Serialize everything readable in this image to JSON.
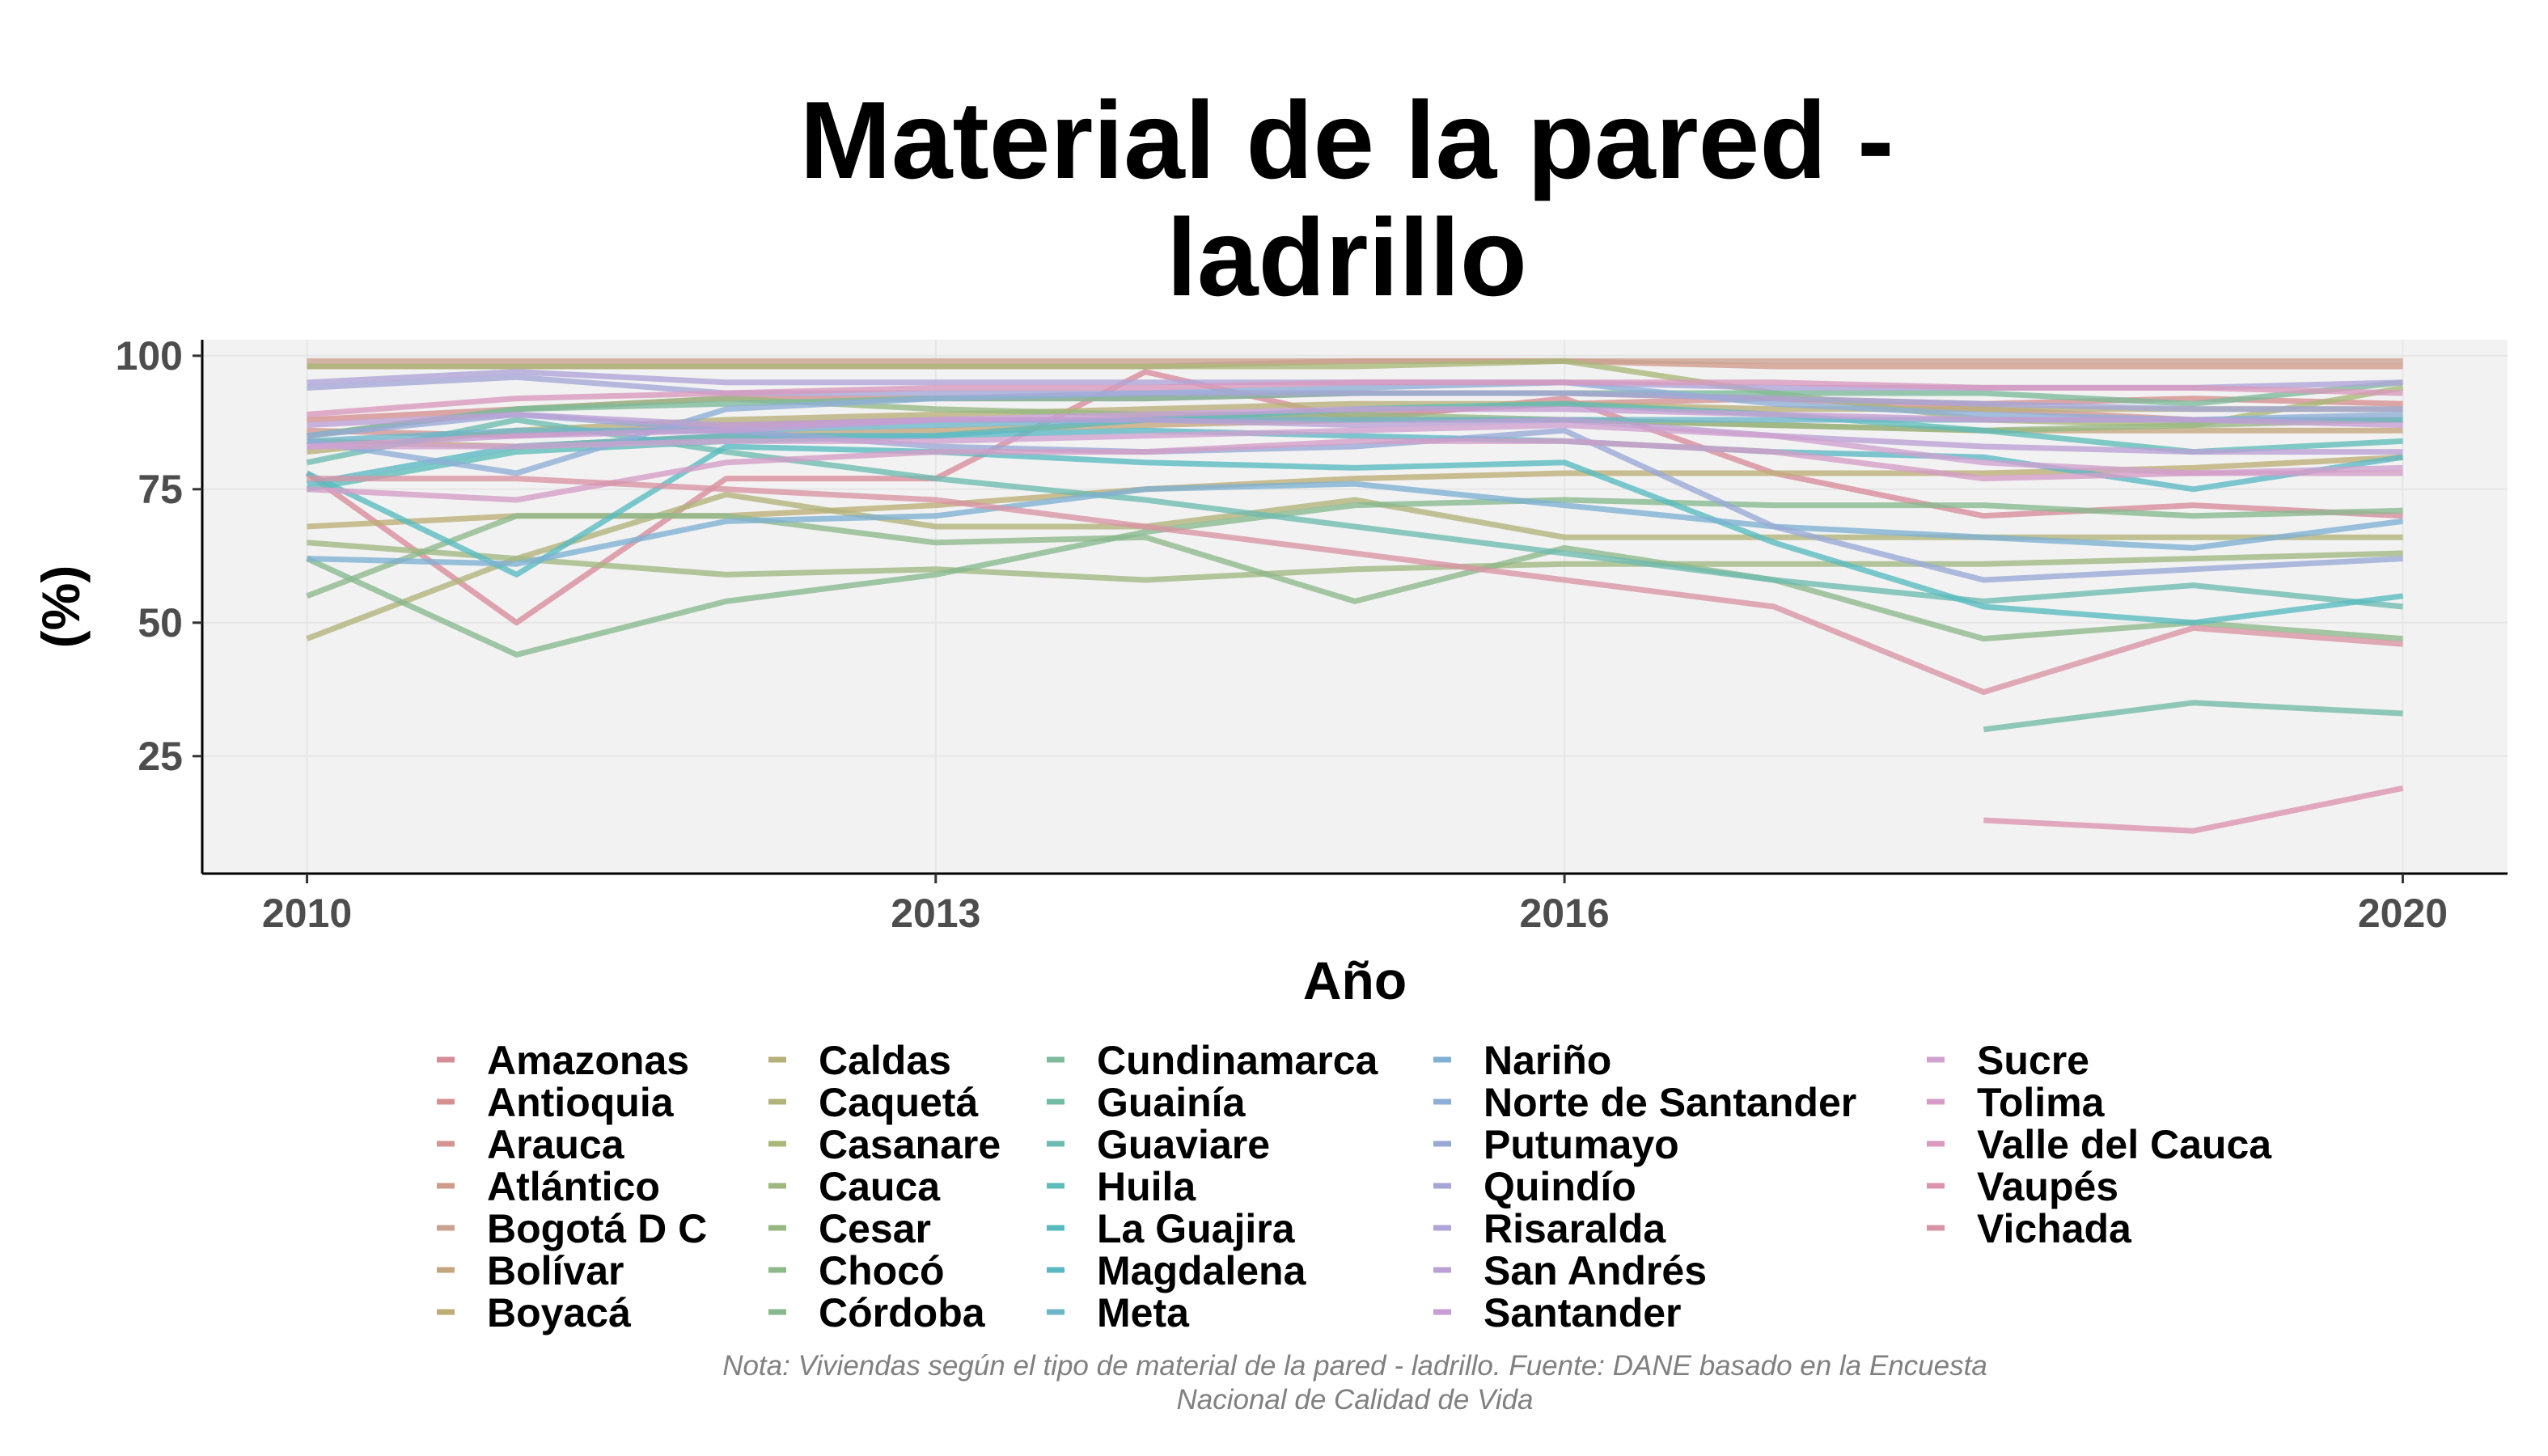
{
  "chart_data": {
    "type": "line",
    "title_lines": [
      "Material de la pared -",
      "ladrillo"
    ],
    "xlabel": "Año",
    "ylabel": "(%)",
    "xlim": [
      2009.5,
      2020.5
    ],
    "ylim": [
      3,
      103
    ],
    "x_ticks": [
      2010,
      2013,
      2016,
      2020
    ],
    "y_ticks": [
      25,
      50,
      75,
      100
    ],
    "grid": true,
    "legend_position": "bottom",
    "caption_lines": [
      "Nota: Viviendas según el tipo de material de la pared - ladrillo. Fuente: DANE basado en la Encuesta",
      "Nacional de Calidad de Vida"
    ],
    "x": [
      2010,
      2011,
      2012,
      2013,
      2014,
      2015,
      2016,
      2017,
      2018,
      2019,
      2020
    ],
    "series": [
      {
        "name": "Amazonas",
        "color": "#d78c9a",
        "values": [
          78,
          50,
          77,
          77,
          97,
          88,
          92,
          78,
          70,
          72,
          70
        ]
      },
      {
        "name": "Antioquia",
        "color": "#d59090",
        "values": [
          88,
          90,
          92,
          92,
          92,
          93,
          93,
          92,
          91,
          92,
          91
        ]
      },
      {
        "name": "Arauca",
        "color": "#d39592",
        "values": [
          86,
          85,
          87,
          88,
          88,
          89,
          91,
          92,
          90,
          88,
          88
        ]
      },
      {
        "name": "Atlántico",
        "color": "#cf9b8a",
        "values": [
          98,
          98,
          98,
          98,
          98,
          99,
          99,
          98,
          98,
          98,
          98
        ]
      },
      {
        "name": "Bogotá D C",
        "color": "#cba28f",
        "values": [
          99,
          99,
          99,
          99,
          99,
          99,
          99,
          99,
          99,
          99,
          99
        ]
      },
      {
        "name": "Bolívar",
        "color": "#c4a67e",
        "values": [
          84,
          83,
          85,
          86,
          87,
          88,
          88,
          87,
          86,
          86,
          86
        ]
      },
      {
        "name": "Boyacá",
        "color": "#bdad76",
        "values": [
          68,
          70,
          70,
          72,
          75,
          77,
          78,
          78,
          78,
          79,
          81
        ]
      },
      {
        "name": "Caldas",
        "color": "#b8b07a",
        "values": [
          82,
          86,
          88,
          89,
          90,
          91,
          91,
          90,
          90,
          90,
          90
        ]
      },
      {
        "name": "Caquetá",
        "color": "#b1b47a",
        "values": [
          47,
          62,
          74,
          68,
          68,
          73,
          66,
          66,
          66,
          66,
          66
        ]
      },
      {
        "name": "Casanare",
        "color": "#a9b779",
        "values": [
          98,
          98,
          98,
          98,
          98,
          98,
          99,
          93,
          88,
          87,
          94
        ]
      },
      {
        "name": "Cauca",
        "color": "#a0b780",
        "values": [
          65,
          62,
          59,
          60,
          58,
          60,
          61,
          61,
          61,
          62,
          63
        ]
      },
      {
        "name": "Cesar",
        "color": "#96b883",
        "values": [
          85,
          90,
          92,
          90,
          89,
          89,
          88,
          87,
          86,
          87,
          88
        ]
      },
      {
        "name": "Chocó",
        "color": "#8db98a",
        "values": [
          55,
          70,
          70,
          65,
          66,
          54,
          64,
          58,
          47,
          50,
          47
        ]
      },
      {
        "name": "Córdoba",
        "color": "#86b98e",
        "values": [
          62,
          44,
          54,
          59,
          67,
          72,
          73,
          72,
          72,
          70,
          71
        ]
      },
      {
        "name": "Cundinamarca",
        "color": "#7eba9b",
        "values": [
          85,
          90,
          91,
          92,
          92,
          93,
          93,
          93,
          93,
          91,
          95
        ]
      },
      {
        "name": "Guainía",
        "color": "#72bba5",
        "values": [
          null,
          null,
          null,
          null,
          null,
          null,
          null,
          null,
          30,
          35,
          33
        ]
      },
      {
        "name": "Guaviare",
        "color": "#6dbbb0",
        "values": [
          80,
          88,
          82,
          77,
          73,
          68,
          63,
          58,
          54,
          57,
          53
        ]
      },
      {
        "name": "Huila",
        "color": "#5ebcb9",
        "values": [
          75,
          82,
          84,
          85,
          88,
          90,
          91,
          89,
          86,
          82,
          84
        ]
      },
      {
        "name": "La Guajira",
        "color": "#58bbc0",
        "values": [
          78,
          59,
          83,
          82,
          80,
          79,
          80,
          65,
          53,
          50,
          55
        ]
      },
      {
        "name": "Magdalena",
        "color": "#5bb8c4",
        "values": [
          76,
          83,
          85,
          85,
          86,
          85,
          84,
          82,
          81,
          75,
          81
        ]
      },
      {
        "name": "Meta",
        "color": "#6db6c9",
        "values": [
          84,
          86,
          86,
          87,
          88,
          88,
          88,
          88,
          88,
          88,
          88
        ]
      },
      {
        "name": "Nariño",
        "color": "#7eb1d2",
        "values": [
          62,
          61,
          69,
          70,
          75,
          76,
          72,
          68,
          66,
          64,
          69
        ]
      },
      {
        "name": "Norte de Santander",
        "color": "#8eaed7",
        "values": [
          84,
          78,
          90,
          92,
          93,
          94,
          95,
          91,
          89,
          88,
          89
        ]
      },
      {
        "name": "Putumayo",
        "color": "#98a9d6",
        "values": [
          85,
          89,
          86,
          83,
          82,
          83,
          86,
          68,
          58,
          60,
          62
        ]
      },
      {
        "name": "Quindío",
        "color": "#a4a6d7",
        "values": [
          94,
          96,
          93,
          93,
          93,
          93,
          93,
          92,
          91,
          90,
          90
        ]
      },
      {
        "name": "Risaralda",
        "color": "#aea4d8",
        "values": [
          95,
          97,
          95,
          95,
          95,
          95,
          95,
          94,
          94,
          94,
          95
        ]
      },
      {
        "name": "San Andrés",
        "color": "#bba0d5",
        "values": [
          87,
          89,
          87,
          88,
          88,
          87,
          88,
          85,
          83,
          82,
          82
        ]
      },
      {
        "name": "Santander",
        "color": "#c69ed4",
        "values": [
          83,
          85,
          86,
          88,
          89,
          90,
          90,
          89,
          88,
          88,
          87
        ]
      },
      {
        "name": "Sucre",
        "color": "#cfa2d0",
        "values": [
          83,
          83,
          84,
          84,
          85,
          86,
          87,
          85,
          80,
          78,
          79
        ]
      },
      {
        "name": "Tolima",
        "color": "#d49cc6",
        "values": [
          75,
          73,
          80,
          82,
          82,
          84,
          84,
          82,
          77,
          78,
          78
        ]
      },
      {
        "name": "Valle del Cauca",
        "color": "#d998bc",
        "values": [
          89,
          92,
          93,
          94,
          94,
          95,
          95,
          95,
          94,
          94,
          93
        ]
      },
      {
        "name": "Vaupés",
        "color": "#dc94ae",
        "values": [
          null,
          null,
          null,
          null,
          null,
          null,
          null,
          null,
          13,
          11,
          19
        ]
      },
      {
        "name": "Vichada",
        "color": "#d993a4",
        "values": [
          77,
          77,
          75,
          73,
          68,
          63,
          58,
          53,
          37,
          49,
          46
        ]
      }
    ]
  }
}
